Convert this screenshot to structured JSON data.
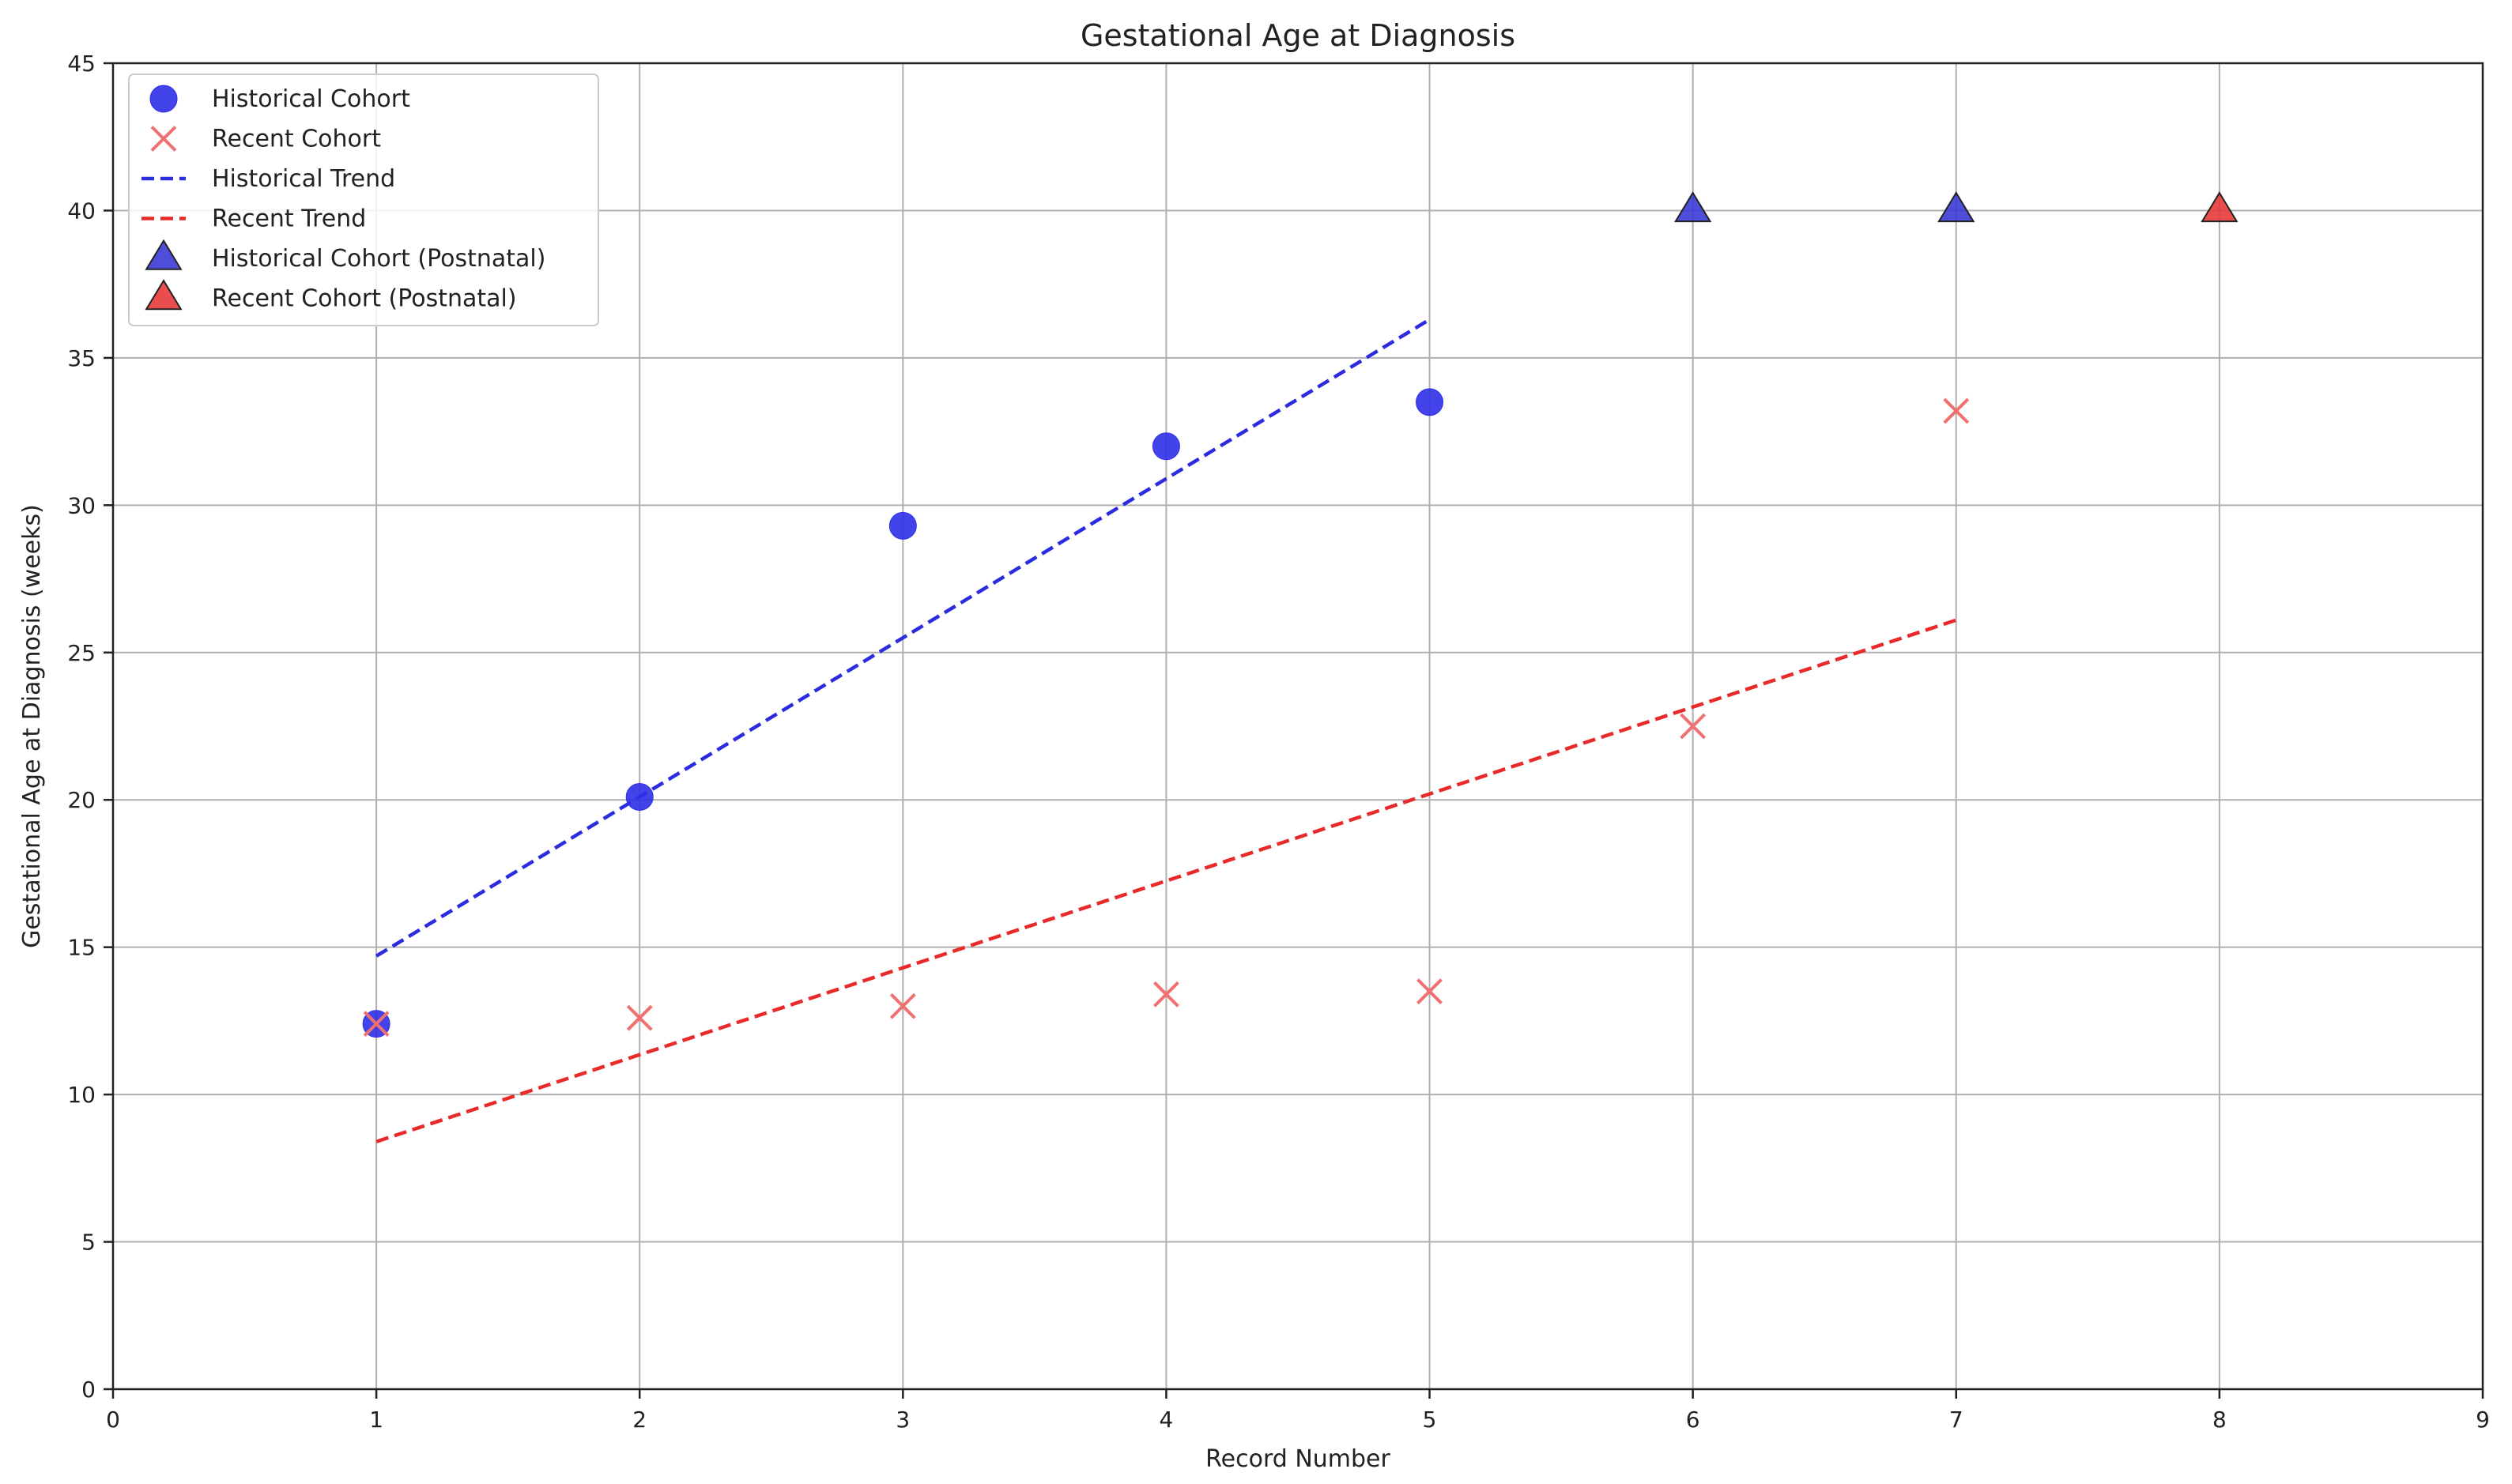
{
  "chart_data": {
    "type": "scatter",
    "title": "Gestational Age at Diagnosis",
    "xlabel": "Record Number",
    "ylabel": "Gestational Age at Diagnosis (weeks)",
    "xlim": [
      0,
      9
    ],
    "ylim": [
      0,
      45
    ],
    "xticks": [
      "0",
      "1",
      "2",
      "3",
      "4",
      "5",
      "6",
      "7",
      "8",
      "9"
    ],
    "yticks": [
      "0",
      "5",
      "10",
      "15",
      "20",
      "25",
      "30",
      "35",
      "40",
      "45"
    ],
    "grid": true,
    "legend_position": "top-left",
    "series": [
      {
        "name": "Historical Cohort",
        "kind": "scatter",
        "marker": "circle",
        "color": "#2f2fe8",
        "points": [
          {
            "x": 1,
            "y": 12.4
          },
          {
            "x": 2,
            "y": 20.1
          },
          {
            "x": 3,
            "y": 29.3
          },
          {
            "x": 4,
            "y": 32.0
          },
          {
            "x": 5,
            "y": 33.5
          }
        ]
      },
      {
        "name": "Recent Cohort",
        "kind": "scatter",
        "marker": "x",
        "color": "#f07070",
        "points": [
          {
            "x": 1,
            "y": 12.4
          },
          {
            "x": 2,
            "y": 12.6
          },
          {
            "x": 3,
            "y": 13.0
          },
          {
            "x": 4,
            "y": 13.4
          },
          {
            "x": 5,
            "y": 13.5
          },
          {
            "x": 6,
            "y": 22.5
          },
          {
            "x": 7,
            "y": 33.2
          }
        ]
      },
      {
        "name": "Historical Trend",
        "kind": "line",
        "style": "dashed",
        "color": "#2b2be0",
        "points": [
          {
            "x": 1,
            "y": 14.7
          },
          {
            "x": 5,
            "y": 36.3
          }
        ]
      },
      {
        "name": "Recent Trend",
        "kind": "line",
        "style": "dashed",
        "color": "#e82a2a",
        "points": [
          {
            "x": 1,
            "y": 8.4
          },
          {
            "x": 7,
            "y": 26.1
          }
        ]
      },
      {
        "name": "Historical Cohort (Postnatal)",
        "kind": "scatter",
        "marker": "triangle",
        "color": "#3b3bd6",
        "points": [
          {
            "x": 6,
            "y": 40
          },
          {
            "x": 7,
            "y": 40
          }
        ]
      },
      {
        "name": "Recent Cohort (Postnatal)",
        "kind": "scatter",
        "marker": "triangle",
        "color": "#e83a3a",
        "points": [
          {
            "x": 8,
            "y": 40
          }
        ]
      }
    ]
  }
}
